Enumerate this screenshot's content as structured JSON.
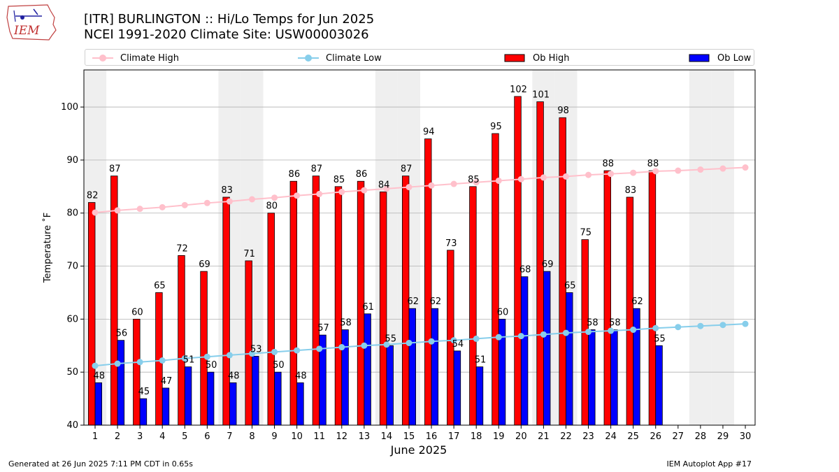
{
  "header": {
    "title_line1": "[ITR] BURLINGTON :: Hi/Lo Temps for Jun 2025",
    "title_line2": "NCEI 1991-2020 Climate Site: USW00003026",
    "logo_text": "IEM"
  },
  "footer": {
    "generated": "Generated at 26 Jun 2025 7:11 PM CDT in 0.65s",
    "app": "IEM Autoplot App #17"
  },
  "colors": {
    "climate_high": "#ffc0cb",
    "climate_low": "#87ceeb",
    "ob_high": "#ff0000",
    "ob_low": "#0000ff",
    "weekend_shade": "#efefef",
    "grid": "#b0b0b0"
  },
  "chart_data": {
    "type": "bar",
    "xlabel": "June 2025",
    "ylabel": "Temperature ˚F",
    "ylim": [
      40,
      107
    ],
    "yticks": [
      40,
      50,
      60,
      70,
      80,
      90,
      100
    ],
    "grid": true,
    "legend_placement": "top",
    "categories": [
      1,
      2,
      3,
      4,
      5,
      6,
      7,
      8,
      9,
      10,
      11,
      12,
      13,
      14,
      15,
      16,
      17,
      18,
      19,
      20,
      21,
      22,
      23,
      24,
      25,
      26,
      27,
      28,
      29,
      30
    ],
    "weekend_days": [
      1,
      7,
      8,
      14,
      15,
      21,
      22,
      28,
      29
    ],
    "series": [
      {
        "name": "Climate High",
        "kind": "line",
        "values": [
          80.1,
          80.5,
          80.8,
          81.1,
          81.5,
          81.9,
          82.2,
          82.6,
          82.9,
          83.3,
          83.6,
          84.0,
          84.3,
          84.6,
          84.9,
          85.2,
          85.5,
          85.8,
          86.1,
          86.4,
          86.7,
          86.9,
          87.2,
          87.4,
          87.6,
          87.9,
          88.0,
          88.2,
          88.4,
          88.6
        ]
      },
      {
        "name": "Climate Low",
        "kind": "line",
        "values": [
          51.2,
          51.6,
          51.9,
          52.2,
          52.6,
          52.9,
          53.2,
          53.5,
          53.8,
          54.1,
          54.4,
          54.7,
          55.0,
          55.2,
          55.5,
          55.8,
          56.0,
          56.3,
          56.6,
          56.8,
          57.1,
          57.4,
          57.6,
          57.8,
          58.0,
          58.3,
          58.5,
          58.7,
          58.9,
          59.1
        ]
      },
      {
        "name": "Ob High",
        "kind": "bar",
        "values": [
          82,
          87,
          60,
          65,
          72,
          69,
          83,
          71,
          80,
          86,
          87,
          85,
          86,
          84,
          87,
          94,
          73,
          85,
          95,
          102,
          101,
          98,
          75,
          88,
          83,
          88,
          null,
          null,
          null,
          null
        ]
      },
      {
        "name": "Ob Low",
        "kind": "bar",
        "values": [
          48,
          56,
          45,
          47,
          51,
          50,
          48,
          53,
          50,
          48,
          57,
          58,
          61,
          55,
          62,
          62,
          54,
          51,
          60,
          68,
          69,
          65,
          58,
          58,
          62,
          55,
          null,
          null,
          null,
          null
        ]
      }
    ]
  }
}
